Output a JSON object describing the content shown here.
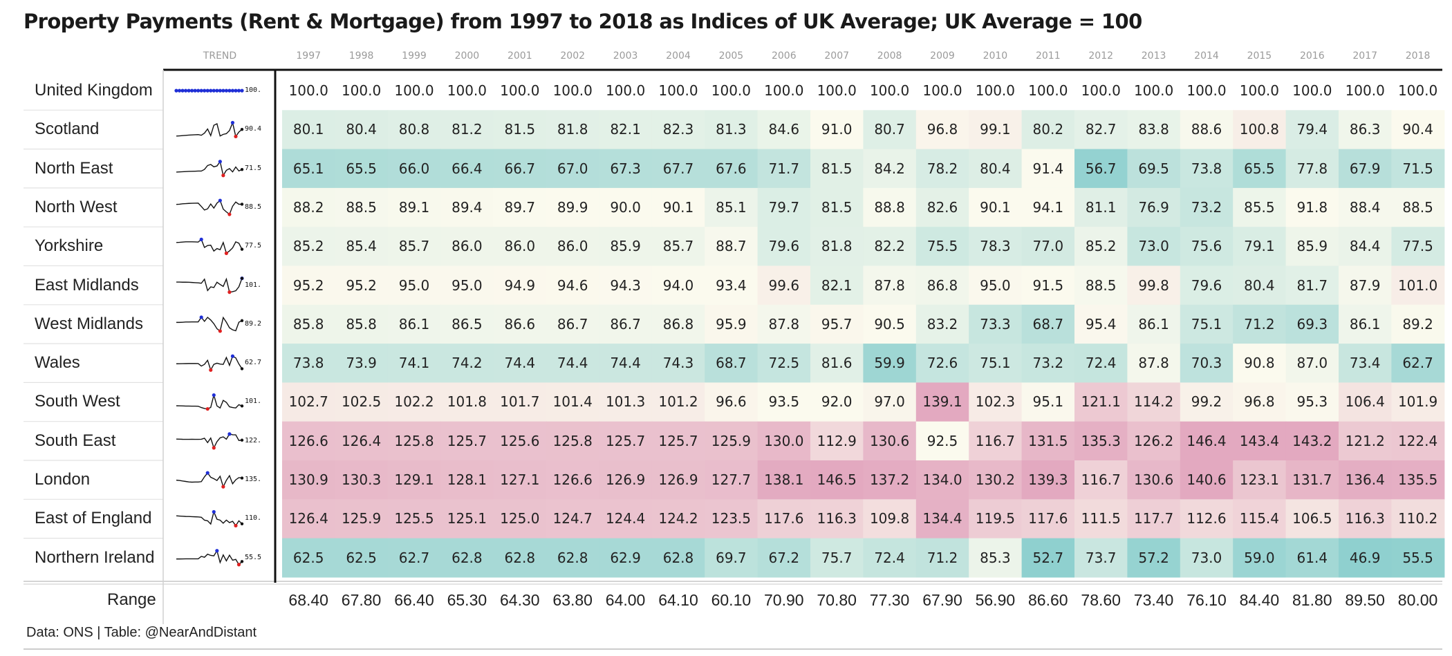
{
  "title": "Property Payments (Rent & Mortgage) from 1997 to 2018 as Indices of UK Average; UK Average = 100",
  "source": "Data: ONS | Table: @NearAndDistant",
  "trend_header": "TREND",
  "range_label": "Range",
  "colors": {
    "low": "#8fd0cf",
    "mid": "#fbfaee",
    "high": "#e3a9c0",
    "trend_line": "#111111",
    "trend_max": "#1f2fd6",
    "trend_min": "#e02020",
    "uk_dots": "#1f2fd6"
  },
  "chart_data": {
    "type": "table",
    "years": [
      "1997",
      "1998",
      "1999",
      "2000",
      "2001",
      "2002",
      "2003",
      "2004",
      "2005",
      "2006",
      "2007",
      "2008",
      "2009",
      "2010",
      "2011",
      "2012",
      "2013",
      "2014",
      "2015",
      "2016",
      "2017",
      "2018"
    ],
    "rows": [
      {
        "region": "United Kingdom",
        "trend_label": "100.",
        "values": [
          100.0,
          100.0,
          100.0,
          100.0,
          100.0,
          100.0,
          100.0,
          100.0,
          100.0,
          100.0,
          100.0,
          100.0,
          100.0,
          100.0,
          100.0,
          100.0,
          100.0,
          100.0,
          100.0,
          100.0,
          100.0,
          100.0
        ]
      },
      {
        "region": "Scotland",
        "trend_label": "90.4",
        "values": [
          80.1,
          80.4,
          80.8,
          81.2,
          81.5,
          81.8,
          82.1,
          82.3,
          81.3,
          84.6,
          91.0,
          80.7,
          96.8,
          99.1,
          80.2,
          82.7,
          83.8,
          88.6,
          100.8,
          79.4,
          86.3,
          90.4
        ]
      },
      {
        "region": "North East",
        "trend_label": "71.5",
        "values": [
          65.1,
          65.5,
          66.0,
          66.4,
          66.7,
          67.0,
          67.3,
          67.7,
          67.6,
          71.7,
          81.5,
          84.2,
          78.2,
          80.4,
          91.4,
          56.7,
          69.5,
          73.8,
          65.5,
          77.8,
          67.9,
          71.5
        ]
      },
      {
        "region": "North West",
        "trend_label": "88.5",
        "values": [
          88.2,
          88.5,
          89.1,
          89.4,
          89.7,
          89.9,
          90.0,
          90.1,
          85.1,
          79.7,
          81.5,
          88.8,
          82.6,
          90.1,
          94.1,
          81.1,
          76.9,
          73.2,
          85.5,
          91.8,
          88.4,
          88.5
        ]
      },
      {
        "region": "Yorkshire",
        "trend_label": "77.5",
        "values": [
          85.2,
          85.4,
          85.7,
          86.0,
          86.0,
          86.0,
          85.9,
          85.7,
          88.7,
          79.6,
          81.8,
          82.2,
          75.5,
          78.3,
          77.0,
          85.2,
          73.0,
          75.6,
          79.1,
          85.9,
          84.4,
          77.5
        ]
      },
      {
        "region": "East Midlands",
        "trend_label": "101.",
        "values": [
          95.2,
          95.2,
          95.0,
          95.0,
          94.9,
          94.6,
          94.3,
          94.0,
          93.4,
          99.6,
          82.1,
          87.8,
          86.8,
          95.0,
          91.5,
          88.5,
          99.8,
          79.6,
          80.4,
          81.7,
          87.9,
          101.0
        ]
      },
      {
        "region": "West Midlands",
        "trend_label": "89.2",
        "values": [
          85.8,
          85.8,
          86.1,
          86.5,
          86.6,
          86.7,
          86.7,
          86.8,
          95.9,
          87.8,
          95.7,
          90.5,
          83.2,
          73.3,
          68.7,
          95.4,
          86.1,
          75.1,
          71.2,
          69.3,
          86.1,
          89.2
        ]
      },
      {
        "region": "Wales",
        "trend_label": "62.7",
        "values": [
          73.8,
          73.9,
          74.1,
          74.2,
          74.4,
          74.4,
          74.4,
          74.3,
          68.7,
          72.5,
          81.6,
          59.9,
          72.6,
          75.1,
          73.2,
          72.4,
          87.8,
          70.3,
          90.8,
          87.0,
          73.4,
          62.7
        ]
      },
      {
        "region": "South West",
        "trend_label": "101.",
        "values": [
          102.7,
          102.5,
          102.2,
          101.8,
          101.7,
          101.4,
          101.3,
          101.2,
          96.6,
          93.5,
          92.0,
          97.0,
          139.1,
          102.3,
          95.1,
          121.1,
          114.2,
          99.2,
          96.8,
          95.3,
          106.4,
          101.9
        ]
      },
      {
        "region": "South East",
        "trend_label": "122.",
        "values": [
          126.6,
          126.4,
          125.8,
          125.7,
          125.6,
          125.8,
          125.7,
          125.7,
          125.9,
          130.0,
          112.9,
          130.6,
          92.5,
          116.7,
          131.5,
          135.3,
          126.2,
          146.4,
          143.4,
          143.2,
          121.2,
          122.4
        ]
      },
      {
        "region": "London",
        "trend_label": "135.",
        "values": [
          130.9,
          130.3,
          129.1,
          128.1,
          127.1,
          126.6,
          126.9,
          126.9,
          127.7,
          138.1,
          146.5,
          137.2,
          134.0,
          130.2,
          139.3,
          116.7,
          130.6,
          140.6,
          123.1,
          131.7,
          136.4,
          135.5
        ]
      },
      {
        "region": "East of England",
        "trend_label": "110.",
        "values": [
          126.4,
          125.9,
          125.5,
          125.1,
          125.0,
          124.7,
          124.4,
          124.2,
          123.5,
          117.6,
          116.3,
          109.8,
          134.4,
          119.5,
          117.6,
          111.5,
          117.7,
          112.6,
          115.4,
          106.5,
          116.3,
          110.2
        ]
      },
      {
        "region": "Northern Ireland",
        "trend_label": "55.5",
        "values": [
          62.5,
          62.5,
          62.7,
          62.8,
          62.8,
          62.8,
          62.9,
          62.8,
          69.7,
          67.2,
          75.7,
          72.4,
          71.2,
          85.3,
          52.7,
          73.7,
          57.2,
          73.0,
          59.0,
          61.4,
          46.9,
          55.5
        ]
      }
    ],
    "range": [
      "68.40",
      "67.80",
      "66.40",
      "65.30",
      "64.30",
      "63.80",
      "64.00",
      "64.10",
      "60.10",
      "70.90",
      "70.80",
      "77.30",
      "67.90",
      "56.90",
      "86.60",
      "78.60",
      "73.40",
      "76.10",
      "84.40",
      "81.80",
      "89.50",
      "80.00"
    ]
  }
}
